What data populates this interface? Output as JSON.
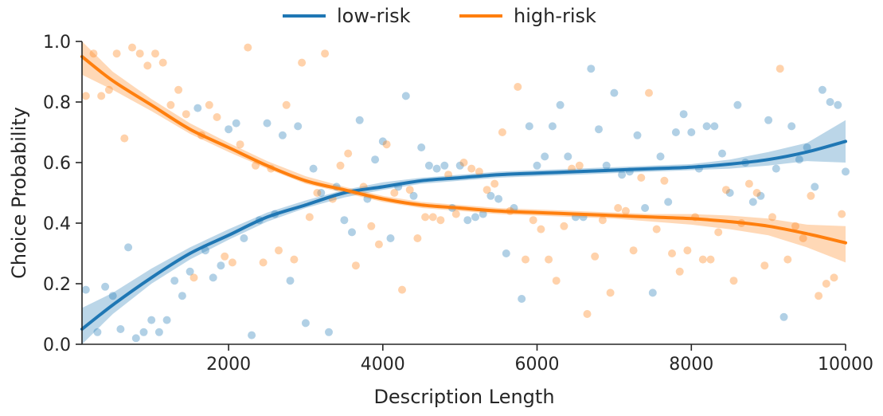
{
  "chart_data": {
    "type": "scatter",
    "xlabel": "Description Length",
    "ylabel": "Choice Probability",
    "xlim": [
      100,
      10000
    ],
    "ylim": [
      0.0,
      1.0
    ],
    "xticks": [
      2000,
      4000,
      6000,
      8000,
      10000
    ],
    "yticks": [
      0.0,
      0.2,
      0.4,
      0.6,
      0.8,
      1.0
    ],
    "xtick_labels": [
      "2000",
      "4000",
      "6000",
      "8000",
      "10000"
    ],
    "ytick_labels": [
      "0.0",
      "0.2",
      "0.4",
      "0.6",
      "0.8",
      "1.0"
    ],
    "grid": false,
    "legend_position": "top-center",
    "series": [
      {
        "name": "low-risk",
        "color": "#1f77b4",
        "points": [
          [
            150,
            0.18
          ],
          [
            300,
            0.04
          ],
          [
            400,
            0.19
          ],
          [
            500,
            0.16
          ],
          [
            600,
            0.05
          ],
          [
            700,
            0.32
          ],
          [
            800,
            0.02
          ],
          [
            900,
            0.04
          ],
          [
            1000,
            0.08
          ],
          [
            1100,
            0.04
          ],
          [
            1200,
            0.08
          ],
          [
            1300,
            0.21
          ],
          [
            1400,
            0.16
          ],
          [
            1500,
            0.24
          ],
          [
            1600,
            0.78
          ],
          [
            1700,
            0.31
          ],
          [
            1800,
            0.22
          ],
          [
            1900,
            0.26
          ],
          [
            2000,
            0.71
          ],
          [
            2100,
            0.73
          ],
          [
            2200,
            0.35
          ],
          [
            2300,
            0.03
          ],
          [
            2400,
            0.41
          ],
          [
            2500,
            0.73
          ],
          [
            2600,
            0.43
          ],
          [
            2700,
            0.69
          ],
          [
            2800,
            0.21
          ],
          [
            2900,
            0.72
          ],
          [
            3000,
            0.07
          ],
          [
            3100,
            0.58
          ],
          [
            3200,
            0.5
          ],
          [
            3300,
            0.04
          ],
          [
            3400,
            0.52
          ],
          [
            3500,
            0.41
          ],
          [
            3600,
            0.37
          ],
          [
            3700,
            0.74
          ],
          [
            3800,
            0.48
          ],
          [
            3900,
            0.61
          ],
          [
            4000,
            0.67
          ],
          [
            4100,
            0.35
          ],
          [
            4200,
            0.52
          ],
          [
            4300,
            0.82
          ],
          [
            4400,
            0.49
          ],
          [
            4500,
            0.65
          ],
          [
            4600,
            0.59
          ],
          [
            4700,
            0.58
          ],
          [
            4800,
            0.59
          ],
          [
            4900,
            0.45
          ],
          [
            5000,
            0.59
          ],
          [
            5100,
            0.41
          ],
          [
            5200,
            0.42
          ],
          [
            5300,
            0.43
          ],
          [
            5400,
            0.49
          ],
          [
            5500,
            0.48
          ],
          [
            5600,
            0.3
          ],
          [
            5700,
            0.45
          ],
          [
            5800,
            0.15
          ],
          [
            5900,
            0.72
          ],
          [
            6000,
            0.59
          ],
          [
            6100,
            0.62
          ],
          [
            6200,
            0.72
          ],
          [
            6300,
            0.79
          ],
          [
            6400,
            0.62
          ],
          [
            6500,
            0.42
          ],
          [
            6600,
            0.42
          ],
          [
            6700,
            0.91
          ],
          [
            6800,
            0.71
          ],
          [
            6900,
            0.59
          ],
          [
            7000,
            0.83
          ],
          [
            7100,
            0.56
          ],
          [
            7200,
            0.57
          ],
          [
            7300,
            0.69
          ],
          [
            7400,
            0.45
          ],
          [
            7500,
            0.17
          ],
          [
            7600,
            0.62
          ],
          [
            7700,
            0.47
          ],
          [
            7800,
            0.7
          ],
          [
            7900,
            0.76
          ],
          [
            8000,
            0.7
          ],
          [
            8100,
            0.58
          ],
          [
            8200,
            0.72
          ],
          [
            8300,
            0.72
          ],
          [
            8400,
            0.63
          ],
          [
            8500,
            0.5
          ],
          [
            8600,
            0.79
          ],
          [
            8700,
            0.6
          ],
          [
            8800,
            0.47
          ],
          [
            8900,
            0.49
          ],
          [
            9000,
            0.74
          ],
          [
            9100,
            0.58
          ],
          [
            9200,
            0.09
          ],
          [
            9300,
            0.72
          ],
          [
            9400,
            0.61
          ],
          [
            9500,
            0.65
          ],
          [
            9600,
            0.52
          ],
          [
            9700,
            0.84
          ],
          [
            9800,
            0.8
          ],
          [
            9900,
            0.79
          ],
          [
            10000,
            0.57
          ]
        ],
        "fit": {
          "x": [
            100,
            500,
            1000,
            1500,
            2000,
            2500,
            3000,
            3500,
            4000,
            4500,
            5000,
            5500,
            6000,
            6500,
            7000,
            7500,
            8000,
            8500,
            9000,
            9500,
            10000
          ],
          "y": [
            0.05,
            0.13,
            0.22,
            0.3,
            0.36,
            0.42,
            0.46,
            0.5,
            0.52,
            0.54,
            0.55,
            0.56,
            0.565,
            0.57,
            0.575,
            0.58,
            0.585,
            0.595,
            0.61,
            0.635,
            0.67
          ],
          "ci_lower": [
            0.0,
            0.1,
            0.2,
            0.28,
            0.345,
            0.405,
            0.45,
            0.485,
            0.51,
            0.53,
            0.54,
            0.55,
            0.555,
            0.56,
            0.565,
            0.57,
            0.575,
            0.58,
            0.59,
            0.605,
            0.6
          ],
          "ci_upper": [
            0.12,
            0.17,
            0.25,
            0.32,
            0.38,
            0.435,
            0.475,
            0.51,
            0.535,
            0.55,
            0.56,
            0.57,
            0.575,
            0.58,
            0.585,
            0.59,
            0.595,
            0.61,
            0.635,
            0.665,
            0.74
          ]
        }
      },
      {
        "name": "high-risk",
        "color": "#ff7f0e",
        "points": [
          [
            150,
            0.82
          ],
          [
            250,
            0.96
          ],
          [
            350,
            0.82
          ],
          [
            450,
            0.84
          ],
          [
            550,
            0.96
          ],
          [
            650,
            0.68
          ],
          [
            750,
            0.98
          ],
          [
            850,
            0.96
          ],
          [
            950,
            0.92
          ],
          [
            1050,
            0.96
          ],
          [
            1150,
            0.93
          ],
          [
            1250,
            0.79
          ],
          [
            1350,
            0.84
          ],
          [
            1450,
            0.76
          ],
          [
            1550,
            0.22
          ],
          [
            1650,
            0.69
          ],
          [
            1750,
            0.79
          ],
          [
            1850,
            0.75
          ],
          [
            1950,
            0.29
          ],
          [
            2050,
            0.27
          ],
          [
            2150,
            0.66
          ],
          [
            2250,
            0.98
          ],
          [
            2350,
            0.59
          ],
          [
            2450,
            0.27
          ],
          [
            2550,
            0.58
          ],
          [
            2650,
            0.31
          ],
          [
            2750,
            0.79
          ],
          [
            2850,
            0.28
          ],
          [
            2950,
            0.93
          ],
          [
            3050,
            0.42
          ],
          [
            3150,
            0.5
          ],
          [
            3250,
            0.96
          ],
          [
            3350,
            0.48
          ],
          [
            3450,
            0.59
          ],
          [
            3550,
            0.63
          ],
          [
            3650,
            0.26
          ],
          [
            3750,
            0.52
          ],
          [
            3850,
            0.39
          ],
          [
            3950,
            0.33
          ],
          [
            4050,
            0.66
          ],
          [
            4150,
            0.5
          ],
          [
            4250,
            0.18
          ],
          [
            4350,
            0.51
          ],
          [
            4450,
            0.35
          ],
          [
            4550,
            0.42
          ],
          [
            4650,
            0.42
          ],
          [
            4750,
            0.41
          ],
          [
            4850,
            0.56
          ],
          [
            4950,
            0.43
          ],
          [
            5050,
            0.6
          ],
          [
            5150,
            0.58
          ],
          [
            5250,
            0.57
          ],
          [
            5350,
            0.51
          ],
          [
            5450,
            0.53
          ],
          [
            5550,
            0.7
          ],
          [
            5650,
            0.44
          ],
          [
            5750,
            0.85
          ],
          [
            5850,
            0.28
          ],
          [
            5950,
            0.41
          ],
          [
            6050,
            0.38
          ],
          [
            6150,
            0.28
          ],
          [
            6250,
            0.21
          ],
          [
            6350,
            0.39
          ],
          [
            6450,
            0.58
          ],
          [
            6550,
            0.59
          ],
          [
            6650,
            0.1
          ],
          [
            6750,
            0.29
          ],
          [
            6850,
            0.41
          ],
          [
            6950,
            0.17
          ],
          [
            7050,
            0.45
          ],
          [
            7150,
            0.44
          ],
          [
            7250,
            0.31
          ],
          [
            7350,
            0.55
          ],
          [
            7450,
            0.83
          ],
          [
            7550,
            0.38
          ],
          [
            7650,
            0.54
          ],
          [
            7750,
            0.3
          ],
          [
            7850,
            0.24
          ],
          [
            7950,
            0.31
          ],
          [
            8050,
            0.42
          ],
          [
            8150,
            0.28
          ],
          [
            8250,
            0.28
          ],
          [
            8350,
            0.37
          ],
          [
            8450,
            0.51
          ],
          [
            8550,
            0.21
          ],
          [
            8650,
            0.4
          ],
          [
            8750,
            0.53
          ],
          [
            8850,
            0.5
          ],
          [
            8950,
            0.26
          ],
          [
            9050,
            0.42
          ],
          [
            9150,
            0.91
          ],
          [
            9250,
            0.28
          ],
          [
            9350,
            0.39
          ],
          [
            9450,
            0.35
          ],
          [
            9550,
            0.49
          ],
          [
            9650,
            0.16
          ],
          [
            9750,
            0.2
          ],
          [
            9850,
            0.22
          ],
          [
            9950,
            0.43
          ]
        ],
        "fit": {
          "x": [
            100,
            500,
            1000,
            1500,
            2000,
            2500,
            3000,
            3500,
            4000,
            4500,
            5000,
            5500,
            6000,
            6500,
            7000,
            7500,
            8000,
            8500,
            9000,
            9500,
            10000
          ],
          "y": [
            0.95,
            0.87,
            0.79,
            0.71,
            0.65,
            0.59,
            0.54,
            0.51,
            0.48,
            0.46,
            0.45,
            0.44,
            0.435,
            0.43,
            0.425,
            0.42,
            0.415,
            0.405,
            0.39,
            0.365,
            0.335
          ],
          "ci_lower": [
            0.89,
            0.84,
            0.77,
            0.695,
            0.635,
            0.58,
            0.53,
            0.5,
            0.47,
            0.45,
            0.44,
            0.43,
            0.425,
            0.42,
            0.415,
            0.405,
            0.395,
            0.38,
            0.36,
            0.32,
            0.27
          ],
          "ci_upper": [
            1.0,
            0.9,
            0.81,
            0.73,
            0.665,
            0.605,
            0.555,
            0.52,
            0.49,
            0.47,
            0.46,
            0.45,
            0.445,
            0.44,
            0.435,
            0.43,
            0.43,
            0.425,
            0.415,
            0.395,
            0.39
          ]
        }
      }
    ]
  }
}
